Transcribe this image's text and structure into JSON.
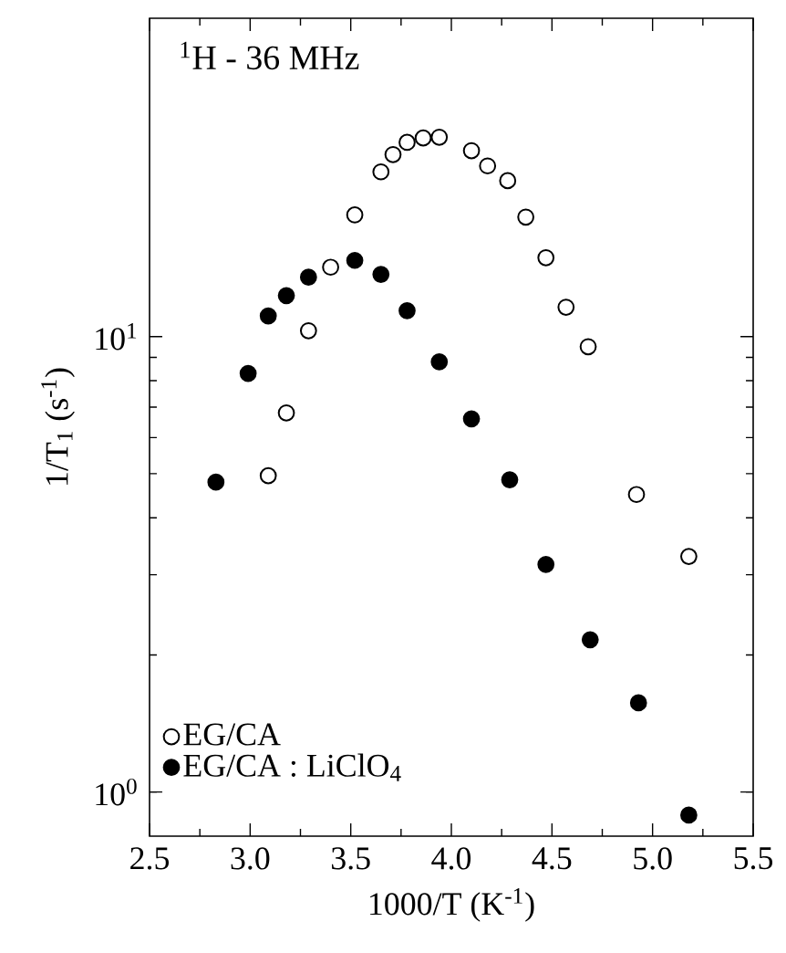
{
  "chart_data": {
    "type": "scatter",
    "xlabel": "1000/T (K$^{-1}$)",
    "ylabel": "1/T$_{1}$ (s$^{-1}$)",
    "annotations": [
      "$^{1}$H - 36 MHz"
    ],
    "log": "y",
    "xlim": [
      2.5,
      5.5
    ],
    "ylim": [
      0.8,
      50
    ],
    "xticks": [
      {
        "value": 2.5,
        "label": "2.5"
      },
      {
        "value": 3.0,
        "label": "3.0"
      },
      {
        "value": 3.5,
        "label": "3.5"
      },
      {
        "value": 4.0,
        "label": "4.0"
      },
      {
        "value": 4.5,
        "label": "4.5"
      },
      {
        "value": 5.0,
        "label": "5.0"
      },
      {
        "value": 5.5,
        "label": "5.5"
      }
    ],
    "yticks": [
      {
        "value": 1,
        "label": "10$^{0}$"
      },
      {
        "value": 10,
        "label": "10$^{1}$"
      }
    ],
    "grid": false,
    "legend": "bottom left",
    "marker": "circle",
    "series": [
      {
        "name": "EG/CA",
        "color": "#000000",
        "x": [
          3.09,
          3.18,
          3.29,
          3.4,
          3.52,
          3.65,
          3.71,
          3.78,
          3.86,
          3.94,
          4.1,
          4.18,
          4.28,
          4.37,
          4.47,
          4.57,
          4.68,
          4.92,
          5.18
        ],
        "values": [
          4.95,
          6.8,
          10.3,
          14.2,
          18.5,
          23.0,
          25.1,
          26.7,
          27.3,
          27.4,
          25.6,
          23.7,
          22.0,
          18.3,
          14.9,
          11.6,
          9.5,
          4.5,
          3.29
        ]
      },
      {
        "name": "EG/CA : LiClO$_{4}$",
        "color": "#000000",
        "x": [
          2.83,
          2.99,
          3.09,
          3.18,
          3.29,
          3.52,
          3.65,
          3.78,
          3.94,
          4.1,
          4.29,
          4.47,
          4.69,
          4.93,
          5.18
        ],
        "values": [
          4.79,
          8.3,
          11.1,
          12.3,
          13.5,
          14.7,
          13.7,
          11.4,
          8.8,
          6.6,
          4.85,
          3.16,
          2.16,
          1.57,
          0.89
        ]
      }
    ]
  }
}
